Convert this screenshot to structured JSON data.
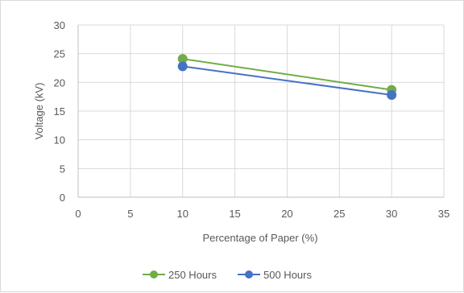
{
  "chart_data": {
    "type": "line",
    "xlabel": "Percentage of Paper (%)",
    "ylabel": "Voltage (kV)",
    "xlim": [
      0,
      35
    ],
    "ylim": [
      0,
      30
    ],
    "xticks": [
      0,
      5,
      10,
      15,
      20,
      25,
      30,
      35
    ],
    "yticks": [
      0,
      5,
      10,
      15,
      20,
      25,
      30
    ],
    "grid": true,
    "legend_position": "bottom",
    "series": [
      {
        "name": "250 Hours",
        "color": "#70ad47",
        "x": [
          10,
          30
        ],
        "y": [
          24.1,
          18.7
        ]
      },
      {
        "name": "500 Hours",
        "color": "#4472c4",
        "x": [
          10,
          30
        ],
        "y": [
          22.8,
          17.8
        ]
      }
    ]
  }
}
